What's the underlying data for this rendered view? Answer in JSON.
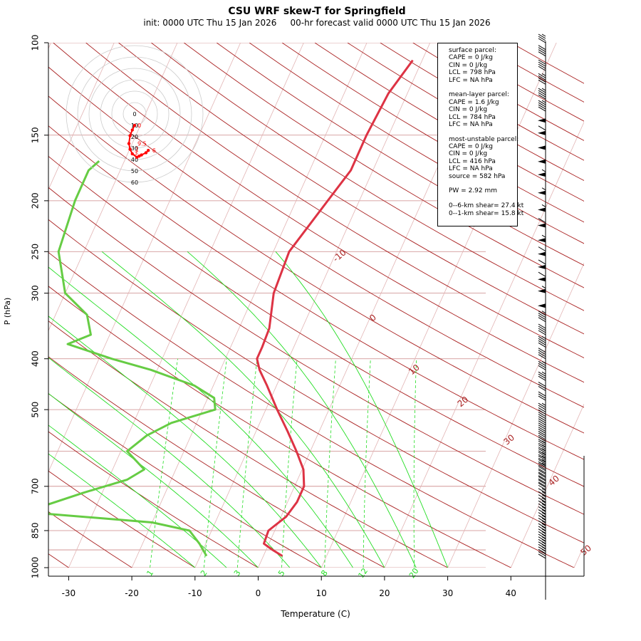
{
  "header": {
    "title": "CSU WRF skew-T for Springfield",
    "subtitle": "init: 0000 UTC Thu 15 Jan 2026     00-hr forecast valid 0000 UTC Thu 15 Jan 2026"
  },
  "stats": {
    "lines": [
      "surface parcel:",
      "CAPE = 0 J/kg",
      "CIN = 0 J/kg",
      "LCL = 798 hPa",
      "LFC = NA hPa",
      "",
      "mean-layer parcel:",
      "CAPE = 1.6 J/kg",
      "CIN = 0 J/kg",
      "LCL = 784 hPa",
      "LFC = NA hPa",
      "",
      "most-unstable parcel:",
      "CAPE = 0 J/kg",
      "CIN = 0 J/kg",
      "LCL = 416 hPa",
      "LFC = NA hPa",
      "source = 582 hPa",
      "",
      "PW =  2.92 mm",
      "",
      "0--6-km shear= 27.4 kt",
      "0--1-km shear= 15.8 kt"
    ]
  },
  "colors": {
    "temperature": "#dd3344",
    "dewpoint": "#66cc44",
    "isotherm": "#aa2222",
    "mixing_ratio": "#22dd22",
    "pressure_grid": "#cc8888",
    "hodograph": "#ff0000"
  },
  "chart_data": {
    "type": "skew-t",
    "xlabel": "Temperature (C)",
    "ylabel": "P (hPa)",
    "x_ticks": [
      -30,
      -20,
      -10,
      0,
      10,
      20,
      30,
      40
    ],
    "x_tick_labels": [
      "-30",
      "-20",
      "-10",
      "0",
      "10",
      "20",
      "30",
      "40"
    ],
    "xlim": [
      -33,
      52
    ],
    "y_scale": "log",
    "ylim": [
      1000,
      100
    ],
    "y_ticks": [
      100,
      150,
      200,
      250,
      300,
      400,
      500,
      700,
      850,
      1000
    ],
    "y_tick_labels": [
      "100",
      "150",
      "200",
      "250",
      "300",
      "400",
      "500",
      "700",
      "850",
      "1000"
    ],
    "pressure_lines": [
      100,
      150,
      200,
      250,
      300,
      400,
      500,
      600,
      700,
      850,
      925,
      1000
    ],
    "isotherm_labels": [
      {
        "value": -10,
        "label": "-10",
        "p": 262
      },
      {
        "value": 0,
        "label": "0",
        "p": 340
      },
      {
        "value": 10,
        "label": "10",
        "p": 430
      },
      {
        "value": 20,
        "label": "20",
        "p": 495
      },
      {
        "value": 30,
        "label": "30",
        "p": 585
      },
      {
        "value": 40,
        "label": "40",
        "p": 700
      },
      {
        "value": 50,
        "label": "50",
        "p": 950
      }
    ],
    "mixing_ratio_labels": [
      "1",
      "2",
      "3",
      "5",
      "8",
      "12",
      "20"
    ],
    "mixing_ratio_values": [
      1,
      2,
      3,
      5,
      8,
      12,
      20
    ],
    "series": [
      {
        "variable": "temperature",
        "points": [
          {
            "p": 950,
            "t": 3.0
          },
          {
            "p": 925,
            "t": 1.0
          },
          {
            "p": 900,
            "t": -0.8
          },
          {
            "p": 850,
            "t": -1.0
          },
          {
            "p": 800,
            "t": 0.8
          },
          {
            "p": 750,
            "t": 1.5
          },
          {
            "p": 700,
            "t": 1.5
          },
          {
            "p": 650,
            "t": 0.2
          },
          {
            "p": 600,
            "t": -2.2
          },
          {
            "p": 550,
            "t": -5.0
          },
          {
            "p": 500,
            "t": -8.2
          },
          {
            "p": 450,
            "t": -11.5
          },
          {
            "p": 420,
            "t": -13.8
          },
          {
            "p": 400,
            "t": -15.0
          },
          {
            "p": 380,
            "t": -15.0
          },
          {
            "p": 350,
            "t": -15.2
          },
          {
            "p": 300,
            "t": -17.0
          },
          {
            "p": 250,
            "t": -17.5
          },
          {
            "p": 200,
            "t": -15.0
          },
          {
            "p": 175,
            "t": -13.5
          },
          {
            "p": 150,
            "t": -13.5
          },
          {
            "p": 125,
            "t": -13.0
          },
          {
            "p": 108,
            "t": -11.5
          }
        ]
      },
      {
        "variable": "dewpoint",
        "points": [
          {
            "p": 950,
            "t": -9.0
          },
          {
            "p": 900,
            "t": -11.0
          },
          {
            "p": 850,
            "t": -13.5
          },
          {
            "p": 820,
            "t": -20.0
          },
          {
            "p": 790,
            "t": -37.0
          },
          {
            "p": 760,
            "t": -38.0
          },
          {
            "p": 720,
            "t": -33.0
          },
          {
            "p": 680,
            "t": -27.0
          },
          {
            "p": 650,
            "t": -25.0
          },
          {
            "p": 600,
            "t": -29.0
          },
          {
            "p": 560,
            "t": -27.0
          },
          {
            "p": 530,
            "t": -24.0
          },
          {
            "p": 500,
            "t": -18.0
          },
          {
            "p": 475,
            "t": -19.0
          },
          {
            "p": 450,
            "t": -23.0
          },
          {
            "p": 420,
            "t": -31.0
          },
          {
            "p": 400,
            "t": -38.0
          },
          {
            "p": 375,
            "t": -46.0
          },
          {
            "p": 360,
            "t": -43.0
          },
          {
            "p": 330,
            "t": -45.0
          },
          {
            "p": 300,
            "t": -50.0
          },
          {
            "p": 250,
            "t": -54.0
          },
          {
            "p": 200,
            "t": -55.0
          },
          {
            "p": 175,
            "t": -55.0
          },
          {
            "p": 168,
            "t": -54.0
          }
        ]
      }
    ],
    "hodograph": {
      "ring_labels": [
        "0",
        "10",
        "20",
        "30",
        "40",
        "50",
        "60"
      ],
      "trace_labels": [
        "0",
        "1",
        "3",
        "6",
        "9.5"
      ],
      "points": [
        {
          "u": 0,
          "v": -10
        },
        {
          "u": -2,
          "v": -14
        },
        {
          "u": -4,
          "v": -19
        },
        {
          "u": -5,
          "v": -26
        },
        {
          "u": -4,
          "v": -31
        },
        {
          "u": -2,
          "v": -35
        },
        {
          "u": 2,
          "v": -38
        },
        {
          "u": 4,
          "v": -37
        },
        {
          "u": 6,
          "v": -36
        },
        {
          "u": 10,
          "v": -34
        },
        {
          "u": 12,
          "v": -32
        }
      ]
    },
    "wind_barbs": {
      "pressures": [
        960,
        950,
        940,
        930,
        920,
        910,
        900,
        890,
        880,
        870,
        860,
        850,
        840,
        830,
        820,
        810,
        800,
        790,
        780,
        770,
        760,
        750,
        740,
        730,
        720,
        710,
        700,
        690,
        680,
        670,
        660,
        650,
        640,
        630,
        620,
        610,
        600,
        590,
        580,
        570,
        560,
        550,
        540,
        530,
        520,
        510,
        500,
        480,
        460,
        440,
        420,
        400,
        380,
        360,
        340,
        320,
        300,
        285,
        270,
        255,
        240,
        225,
        210,
        195,
        180,
        170,
        160,
        150,
        142,
        135,
        128,
        120,
        113,
        106,
        100
      ],
      "speed_kt": [
        10,
        15,
        15,
        15,
        15,
        15,
        15,
        15,
        15,
        15,
        15,
        15,
        15,
        15,
        15,
        15,
        15,
        15,
        15,
        15,
        15,
        15,
        15,
        15,
        15,
        20,
        20,
        20,
        20,
        20,
        20,
        25,
        25,
        25,
        25,
        25,
        25,
        25,
        20,
        20,
        20,
        20,
        20,
        20,
        20,
        20,
        25,
        30,
        30,
        35,
        35,
        40,
        45,
        40,
        45,
        50,
        55,
        60,
        60,
        60,
        55,
        60,
        55,
        55,
        55,
        50,
        50,
        60,
        50,
        45,
        45,
        45,
        40,
        40,
        35
      ]
    }
  }
}
